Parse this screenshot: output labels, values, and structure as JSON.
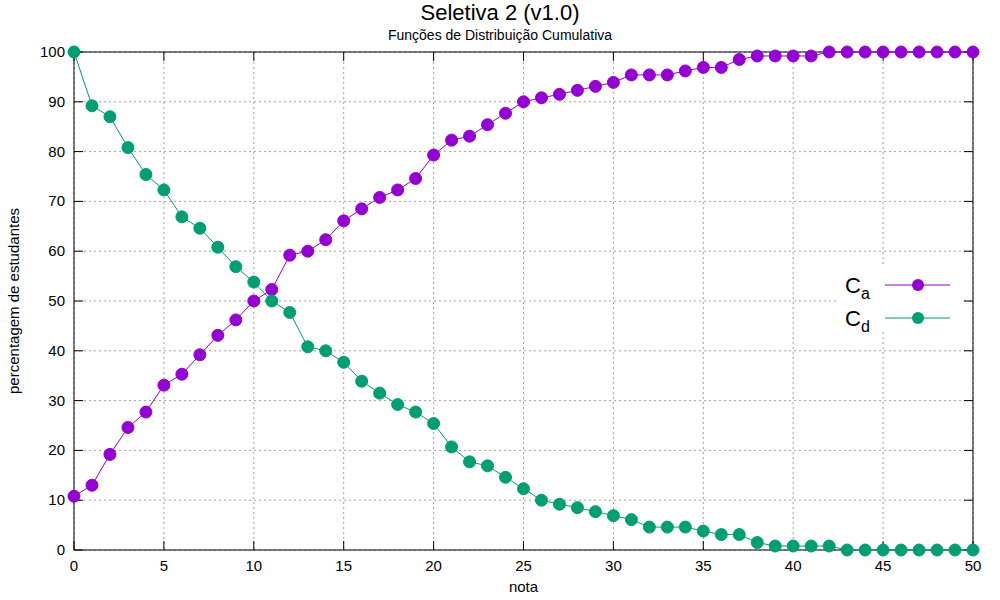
{
  "chart_data": {
    "type": "line",
    "title": "Seletiva 2 (v1.0)",
    "subtitle": "Funções de Distribuição Cumulativa",
    "x_label": "nota",
    "y_label": "percentagem de estudantes",
    "x": [
      0,
      1,
      2,
      3,
      4,
      5,
      6,
      7,
      8,
      9,
      10,
      11,
      12,
      13,
      14,
      15,
      16,
      17,
      18,
      19,
      20,
      21,
      22,
      23,
      24,
      25,
      26,
      27,
      28,
      29,
      30,
      31,
      32,
      33,
      34,
      35,
      36,
      37,
      38,
      39,
      40,
      41,
      42,
      43,
      44,
      45,
      46,
      47,
      48,
      49,
      50
    ],
    "series": [
      {
        "name": "Ca",
        "color": "#9400d3",
        "marker": "circle",
        "values": [
          10.8,
          13.0,
          19.2,
          24.6,
          27.7,
          33.1,
          35.3,
          39.2,
          43.1,
          46.2,
          50.0,
          52.3,
          59.2,
          60.0,
          62.3,
          66.1,
          68.5,
          70.8,
          72.3,
          74.6,
          79.3,
          82.3,
          83.1,
          85.4,
          87.7,
          90.0,
          90.8,
          91.5,
          92.3,
          93.1,
          93.9,
          95.4,
          95.4,
          95.4,
          96.2,
          96.9,
          96.9,
          98.5,
          99.2,
          99.2,
          99.2,
          99.2,
          100,
          100,
          100,
          100,
          100,
          100,
          100,
          100,
          100
        ]
      },
      {
        "name": "Cd",
        "color": "#009e73",
        "marker": "circle",
        "values": [
          100,
          89.2,
          87.0,
          80.8,
          75.4,
          72.3,
          66.9,
          64.6,
          60.8,
          56.9,
          53.8,
          50.0,
          47.7,
          40.8,
          40.0,
          37.7,
          33.9,
          31.5,
          29.2,
          27.7,
          25.4,
          20.7,
          17.7,
          16.9,
          14.6,
          12.3,
          10.0,
          9.2,
          8.5,
          7.7,
          6.9,
          6.1,
          4.6,
          4.6,
          4.6,
          3.8,
          3.1,
          3.1,
          1.5,
          0.8,
          0.8,
          0.8,
          0.8,
          0,
          0,
          0,
          0,
          0,
          0,
          0,
          0
        ]
      }
    ],
    "xlim": [
      0,
      50
    ],
    "ylim": [
      0,
      100
    ],
    "xticks": [
      0,
      5,
      10,
      15,
      20,
      25,
      30,
      35,
      40,
      45,
      50
    ],
    "yticks": [
      0,
      10,
      20,
      30,
      40,
      50,
      60,
      70,
      80,
      90,
      100
    ],
    "grid": true,
    "legend": "right"
  }
}
